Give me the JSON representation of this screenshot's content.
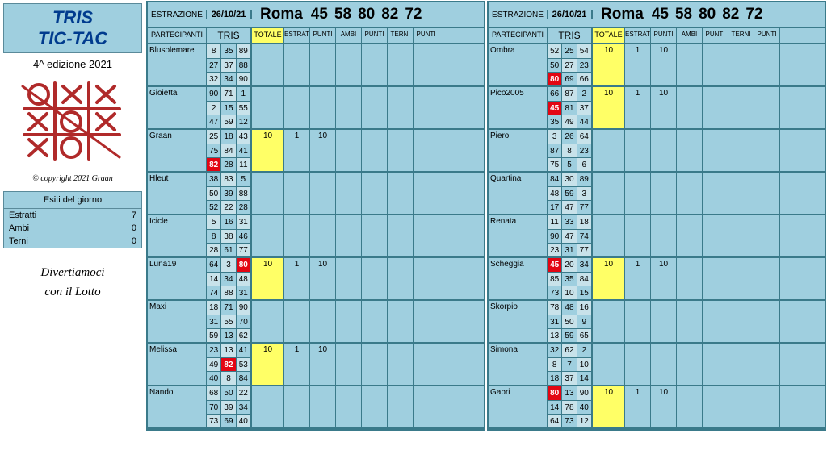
{
  "title1": "TRIS",
  "title2": "TIC-TAC",
  "edition": "4^ edizione 2021",
  "copyright": "© copyright 2021 Graan",
  "esiti_head": "Esiti del giorno",
  "esiti": [
    {
      "label": "Estratti",
      "val": "7"
    },
    {
      "label": "Ambi",
      "val": "0"
    },
    {
      "label": "Terni",
      "val": "0"
    }
  ],
  "slogan1": "Divertiamoci",
  "slogan2": "con il Lotto",
  "header": {
    "estr_label": "ESTRAZIONE",
    "date": "26/10/21",
    "city": "Roma",
    "nums": [
      "45",
      "58",
      "80",
      "82",
      "72"
    ]
  },
  "cols": {
    "part": "PARTECIPANTI",
    "tris": "TRIS",
    "tot": "TOTALE",
    "s": [
      "ESTRAT",
      "PUNTI",
      "AMBI",
      "PUNTI",
      "TERNI",
      "PUNTI"
    ]
  },
  "left": [
    {
      "name": "Blusolemare",
      "tris": [
        [
          "8",
          "35",
          "89"
        ],
        [
          "27",
          "37",
          "88"
        ],
        [
          "32",
          "34",
          "90"
        ]
      ],
      "alt": [
        [
          1,
          0,
          1
        ],
        [
          0,
          1,
          0
        ],
        [
          1,
          0,
          1
        ]
      ],
      "hit": [],
      "tot": "",
      "hl": 0,
      "sc": [
        "",
        "",
        "",
        "",
        "",
        ""
      ]
    },
    {
      "name": "Gioietta",
      "tris": [
        [
          "90",
          "71",
          "1"
        ],
        [
          "2",
          "15",
          "55"
        ],
        [
          "47",
          "59",
          "12"
        ]
      ],
      "alt": [
        [
          0,
          1,
          0
        ],
        [
          1,
          0,
          1
        ],
        [
          0,
          1,
          0
        ]
      ],
      "hit": [],
      "tot": "",
      "hl": 0,
      "sc": [
        "",
        "",
        "",
        "",
        "",
        ""
      ]
    },
    {
      "name": "Graan",
      "tris": [
        [
          "25",
          "18",
          "43"
        ],
        [
          "75",
          "84",
          "41"
        ],
        [
          "82",
          "28",
          "11"
        ]
      ],
      "alt": [
        [
          1,
          0,
          1
        ],
        [
          0,
          1,
          0
        ],
        [
          1,
          0,
          1
        ]
      ],
      "hit": [
        [
          2,
          0
        ]
      ],
      "tot": "10",
      "hl": 1,
      "sc": [
        "1",
        "10",
        "",
        "",
        "",
        ""
      ]
    },
    {
      "name": "Hleut",
      "tris": [
        [
          "38",
          "83",
          "5"
        ],
        [
          "50",
          "39",
          "88"
        ],
        [
          "52",
          "22",
          "28"
        ]
      ],
      "alt": [
        [
          0,
          1,
          0
        ],
        [
          1,
          0,
          1
        ],
        [
          0,
          1,
          0
        ]
      ],
      "hit": [],
      "tot": "",
      "hl": 0,
      "sc": [
        "",
        "",
        "",
        "",
        "",
        ""
      ]
    },
    {
      "name": "Icicle",
      "tris": [
        [
          "5",
          "16",
          "31"
        ],
        [
          "8",
          "38",
          "46"
        ],
        [
          "28",
          "61",
          "77"
        ]
      ],
      "alt": [
        [
          1,
          0,
          1
        ],
        [
          0,
          1,
          0
        ],
        [
          1,
          0,
          1
        ]
      ],
      "hit": [],
      "tot": "",
      "hl": 0,
      "sc": [
        "",
        "",
        "",
        "",
        "",
        ""
      ]
    },
    {
      "name": "Luna19",
      "tris": [
        [
          "64",
          "3",
          "80"
        ],
        [
          "14",
          "34",
          "48"
        ],
        [
          "74",
          "88",
          "31"
        ]
      ],
      "alt": [
        [
          0,
          1,
          0
        ],
        [
          1,
          0,
          1
        ],
        [
          0,
          1,
          0
        ]
      ],
      "hit": [
        [
          0,
          2
        ]
      ],
      "tot": "10",
      "hl": 1,
      "sc": [
        "1",
        "10",
        "",
        "",
        "",
        ""
      ]
    },
    {
      "name": "Maxi",
      "tris": [
        [
          "18",
          "71",
          "90"
        ],
        [
          "31",
          "55",
          "70"
        ],
        [
          "59",
          "13",
          "62"
        ]
      ],
      "alt": [
        [
          1,
          0,
          1
        ],
        [
          0,
          1,
          0
        ],
        [
          1,
          0,
          1
        ]
      ],
      "hit": [],
      "tot": "",
      "hl": 0,
      "sc": [
        "",
        "",
        "",
        "",
        "",
        ""
      ]
    },
    {
      "name": "Melissa",
      "tris": [
        [
          "23",
          "13",
          "41"
        ],
        [
          "49",
          "82",
          "53"
        ],
        [
          "40",
          "8",
          "84"
        ]
      ],
      "alt": [
        [
          0,
          1,
          0
        ],
        [
          1,
          0,
          1
        ],
        [
          0,
          1,
          0
        ]
      ],
      "hit": [
        [
          1,
          1
        ]
      ],
      "tot": "10",
      "hl": 1,
      "sc": [
        "1",
        "10",
        "",
        "",
        "",
        ""
      ]
    },
    {
      "name": "Nando",
      "tris": [
        [
          "68",
          "50",
          "22"
        ],
        [
          "70",
          "39",
          "34"
        ],
        [
          "73",
          "69",
          "40"
        ]
      ],
      "alt": [
        [
          1,
          0,
          1
        ],
        [
          0,
          1,
          0
        ],
        [
          1,
          0,
          1
        ]
      ],
      "hit": [],
      "tot": "",
      "hl": 0,
      "sc": [
        "",
        "",
        "",
        "",
        "",
        ""
      ]
    }
  ],
  "right": [
    {
      "name": "Ombra",
      "tris": [
        [
          "52",
          "25",
          "54"
        ],
        [
          "50",
          "27",
          "23"
        ],
        [
          "80",
          "69",
          "66"
        ]
      ],
      "alt": [
        [
          1,
          0,
          1
        ],
        [
          0,
          1,
          0
        ],
        [
          1,
          0,
          1
        ]
      ],
      "hit": [
        [
          2,
          0
        ]
      ],
      "tot": "10",
      "hl": 1,
      "sc": [
        "1",
        "10",
        "",
        "",
        "",
        ""
      ]
    },
    {
      "name": "Pico2005",
      "tris": [
        [
          "66",
          "87",
          "2"
        ],
        [
          "45",
          "81",
          "37"
        ],
        [
          "35",
          "49",
          "44"
        ]
      ],
      "alt": [
        [
          0,
          1,
          0
        ],
        [
          1,
          0,
          1
        ],
        [
          0,
          1,
          0
        ]
      ],
      "hit": [
        [
          1,
          0
        ]
      ],
      "tot": "10",
      "hl": 1,
      "sc": [
        "1",
        "10",
        "",
        "",
        "",
        ""
      ]
    },
    {
      "name": "Piero",
      "tris": [
        [
          "3",
          "26",
          "64"
        ],
        [
          "87",
          "8",
          "23"
        ],
        [
          "75",
          "5",
          "6"
        ]
      ],
      "alt": [
        [
          1,
          0,
          1
        ],
        [
          0,
          1,
          0
        ],
        [
          1,
          0,
          1
        ]
      ],
      "hit": [],
      "tot": "",
      "hl": 0,
      "sc": [
        "",
        "",
        "",
        "",
        "",
        ""
      ]
    },
    {
      "name": "Quartina",
      "tris": [
        [
          "84",
          "30",
          "89"
        ],
        [
          "48",
          "59",
          "3"
        ],
        [
          "17",
          "47",
          "77"
        ]
      ],
      "alt": [
        [
          0,
          1,
          0
        ],
        [
          1,
          0,
          1
        ],
        [
          0,
          1,
          0
        ]
      ],
      "hit": [],
      "tot": "",
      "hl": 0,
      "sc": [
        "",
        "",
        "",
        "",
        "",
        ""
      ]
    },
    {
      "name": "Renata",
      "tris": [
        [
          "11",
          "33",
          "18"
        ],
        [
          "90",
          "47",
          "74"
        ],
        [
          "23",
          "31",
          "77"
        ]
      ],
      "alt": [
        [
          1,
          0,
          1
        ],
        [
          0,
          1,
          0
        ],
        [
          1,
          0,
          1
        ]
      ],
      "hit": [],
      "tot": "",
      "hl": 0,
      "sc": [
        "",
        "",
        "",
        "",
        "",
        ""
      ]
    },
    {
      "name": "Scheggia",
      "tris": [
        [
          "45",
          "20",
          "34"
        ],
        [
          "85",
          "35",
          "84"
        ],
        [
          "73",
          "10",
          "15"
        ]
      ],
      "alt": [
        [
          0,
          1,
          0
        ],
        [
          1,
          0,
          1
        ],
        [
          0,
          1,
          0
        ]
      ],
      "hit": [
        [
          0,
          0
        ]
      ],
      "tot": "10",
      "hl": 1,
      "sc": [
        "1",
        "10",
        "",
        "",
        "",
        ""
      ]
    },
    {
      "name": "Skorpio",
      "tris": [
        [
          "78",
          "48",
          "16"
        ],
        [
          "31",
          "50",
          "9"
        ],
        [
          "13",
          "59",
          "65"
        ]
      ],
      "alt": [
        [
          1,
          0,
          1
        ],
        [
          0,
          1,
          0
        ],
        [
          1,
          0,
          1
        ]
      ],
      "hit": [],
      "tot": "",
      "hl": 0,
      "sc": [
        "",
        "",
        "",
        "",
        "",
        ""
      ]
    },
    {
      "name": "Simona",
      "tris": [
        [
          "32",
          "62",
          "2"
        ],
        [
          "8",
          "7",
          "10"
        ],
        [
          "18",
          "37",
          "14"
        ]
      ],
      "alt": [
        [
          0,
          1,
          0
        ],
        [
          1,
          0,
          1
        ],
        [
          0,
          1,
          0
        ]
      ],
      "hit": [],
      "tot": "",
      "hl": 0,
      "sc": [
        "",
        "",
        "",
        "",
        "",
        ""
      ]
    },
    {
      "name": "Gabri",
      "tris": [
        [
          "80",
          "13",
          "90"
        ],
        [
          "14",
          "78",
          "40"
        ],
        [
          "64",
          "73",
          "12"
        ]
      ],
      "alt": [
        [
          1,
          0,
          1
        ],
        [
          0,
          1,
          0
        ],
        [
          1,
          0,
          1
        ]
      ],
      "hit": [
        [
          0,
          0
        ]
      ],
      "tot": "10",
      "hl": 1,
      "sc": [
        "1",
        "10",
        "",
        "",
        "",
        ""
      ]
    }
  ]
}
